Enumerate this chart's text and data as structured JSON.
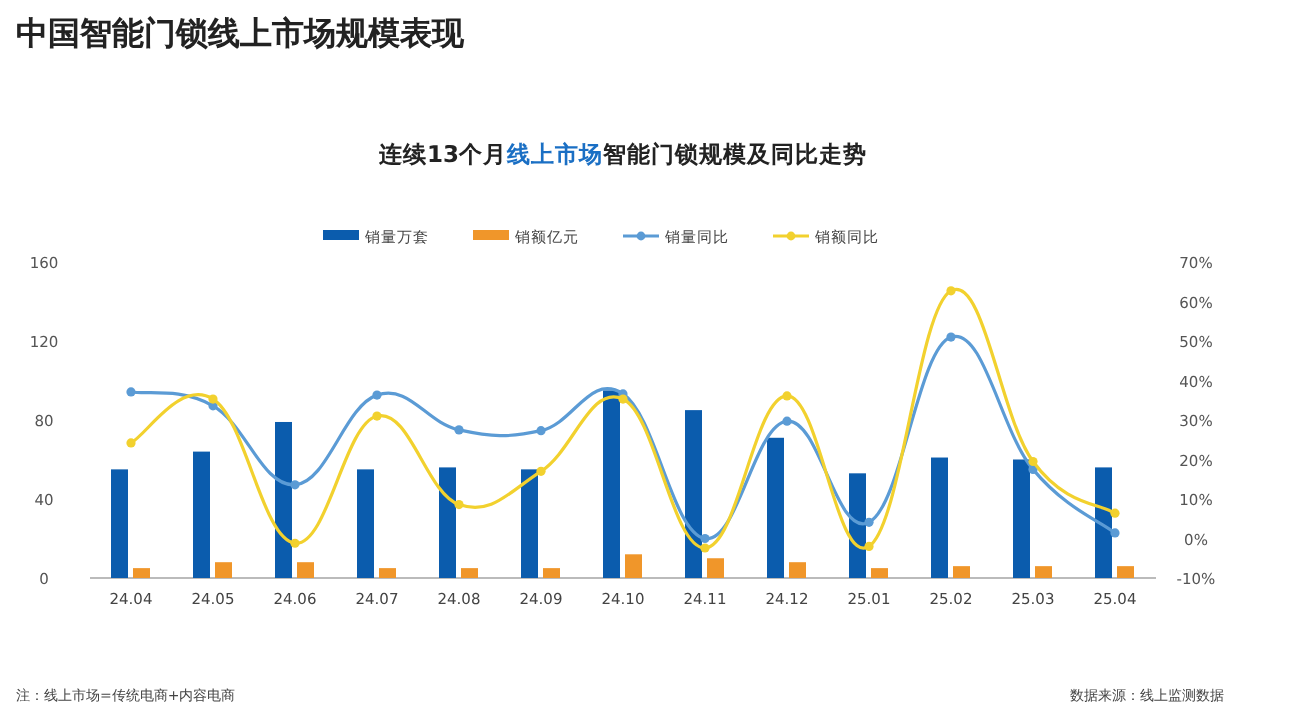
{
  "chart_data": {
    "type": "bar",
    "title": "中国智能门锁线上市场规模表现",
    "subtitle": "连续13个月**线上市场**智能门锁规模及同比走势",
    "categories": [
      "24.04",
      "24.05",
      "24.06",
      "24.07",
      "24.08",
      "24.09",
      "24.10",
      "24.11",
      "24.12",
      "25.01",
      "25.02",
      "25.03",
      "25.04"
    ],
    "series": [
      {
        "name": "销量万套",
        "color": "#0b5cad",
        "values": [
          55,
          64,
          79,
          55,
          56,
          55,
          95,
          85,
          71,
          53,
          61,
          60,
          56
        ]
      },
      {
        "name": "销额亿元",
        "color": "#f0962a",
        "values": [
          5,
          8,
          8,
          5,
          5,
          5,
          12,
          10,
          8,
          5,
          6,
          6,
          6
        ]
      },
      {
        "name": "销量同比",
        "type": "line",
        "axis": "y2",
        "color": "#5b9bd5",
        "values": [
          37.1,
          33.6,
          13.6,
          36.3,
          27.5,
          27.3,
          36.6,
          0,
          29.7,
          4.1,
          51,
          17.5,
          1.4
        ]
      },
      {
        "name": "销额同比",
        "type": "line",
        "axis": "y2",
        "color": "#f2d12e",
        "values": [
          24.2,
          35.3,
          -1.2,
          31,
          8.6,
          17,
          35.3,
          -2.4,
          36.1,
          -2,
          62.7,
          19.5,
          6.4
        ]
      }
    ],
    "ylim": [
      0,
      160
    ],
    "yticks": [
      0,
      40,
      80,
      120,
      160
    ],
    "y2lim": [
      -10,
      70
    ],
    "y2ticks": [
      {
        "value": -10,
        "label": "-10%"
      },
      {
        "value": 0,
        "label": "0%"
      },
      {
        "value": 10,
        "label": "10%"
      },
      {
        "value": 20,
        "label": "20%"
      },
      {
        "value": 30,
        "label": "30%"
      },
      {
        "value": 40,
        "label": "40%"
      },
      {
        "value": 50,
        "label": "50%"
      },
      {
        "value": 60,
        "label": "60%"
      },
      {
        "value": 70,
        "label": "70%"
      }
    ],
    "legend": "top",
    "marker": "circle",
    "annotations": [
      "注：线上市场=传统电商+内容电商",
      "数据来源：线上监测数据"
    ]
  }
}
